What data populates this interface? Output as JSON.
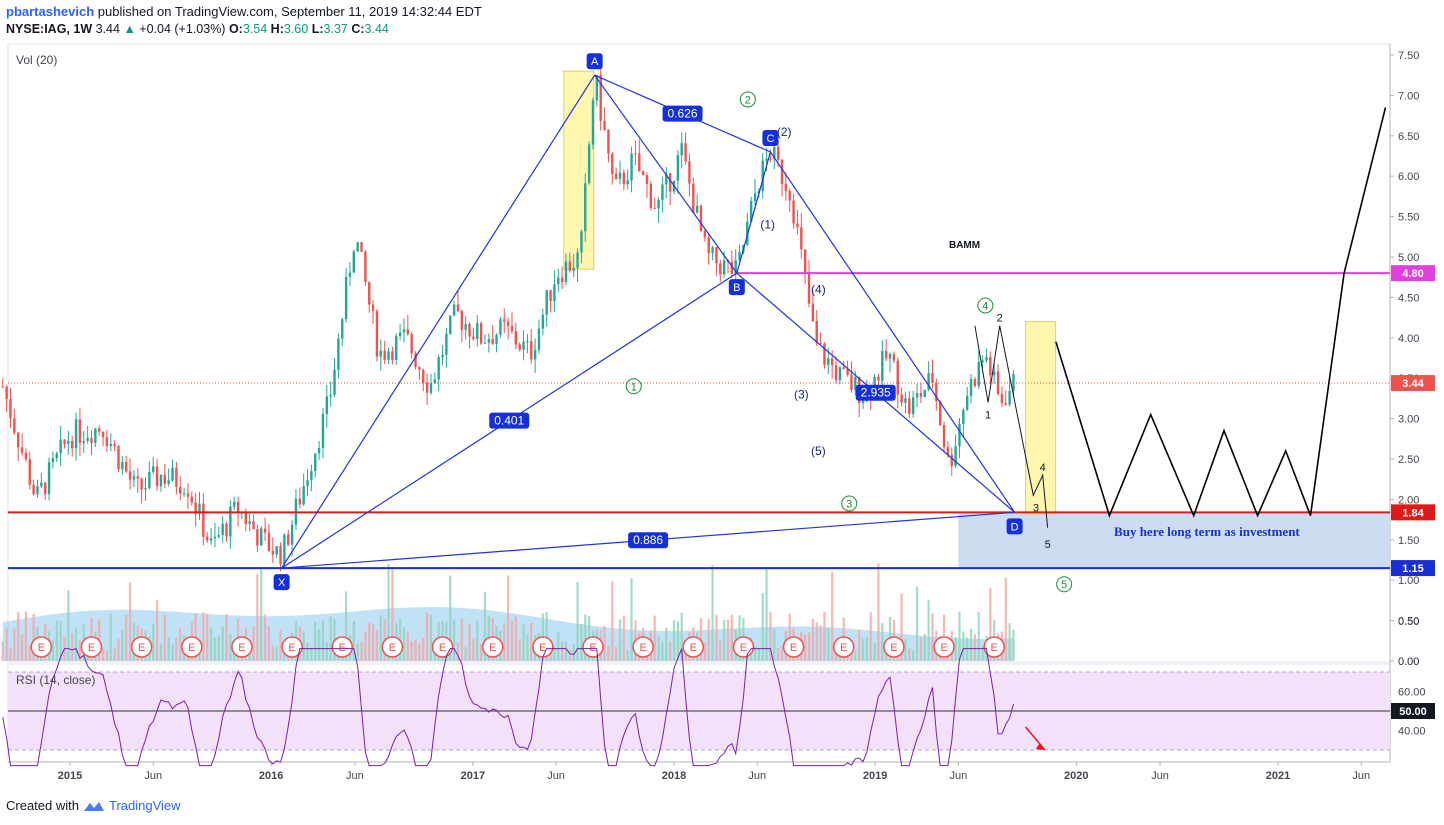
{
  "header": {
    "user": "pbartashevich",
    "published_text": "published on TradingView.com, September 11, 2019 14:32:44 EDT",
    "symbol": "NYSE:IAG, 1W",
    "last": "3.44",
    "change": "+0.04 (+1.03%)",
    "o_label": "O:",
    "o": "3.54",
    "h_label": "H:",
    "h": "3.60",
    "l_label": "L:",
    "l": "3.37",
    "c_label": "C:",
    "c": "3.44"
  },
  "footer": {
    "created_with": "Created with",
    "brand": "TradingView"
  },
  "colors": {
    "up": "#26a69a",
    "down": "#ef5350",
    "pattern": "#2233dd",
    "magenta": "#e040e0",
    "support_red": "#e01818",
    "support_blue": "#1a2fd1",
    "rsi_line": "#7b1fa2",
    "rsi_band": "#f3e1fb",
    "buy_zone": "#c6d9f1",
    "highlight": "#fff7b0"
  },
  "icons": [
    "up-triangle-icon",
    "earnings-e-icon",
    "tradingview-logo-icon",
    "red-arrow-down-icon"
  ],
  "chart_data": [
    {
      "type": "candlestick",
      "title": "NYSE:IAG, 1W",
      "y_ticks": [
        "7.50",
        "7.00",
        "6.50",
        "6.00",
        "5.50",
        "5.00",
        "4.50",
        "4.00",
        "3.50",
        "3.00",
        "2.50",
        "2.00",
        "1.50",
        "1.00",
        "0.50",
        "0.00"
      ],
      "x_ticks": [
        "2015",
        "Jun",
        "2016",
        "Jun",
        "2017",
        "Jun",
        "2018",
        "Jun",
        "2019",
        "Jun",
        "2020",
        "Jun",
        "2021",
        "Jun"
      ],
      "x_tick_dates": [
        "2015-01-01",
        "2015-06-01",
        "2016-01-01",
        "2016-06-01",
        "2017-01-01",
        "2017-06-01",
        "2018-01-01",
        "2018-06-01",
        "2019-01-01",
        "2019-06-01",
        "2020-01-01",
        "2020-06-01",
        "2021-01-01",
        "2021-06-01"
      ],
      "ylim": [
        0,
        7.6
      ],
      "price_path": {
        "dates": [
          "2014-09-01",
          "2014-11-01",
          "2015-01-01",
          "2015-03-01",
          "2015-05-01",
          "2015-06-15",
          "2015-08-01",
          "2015-09-15",
          "2015-11-01",
          "2015-12-15",
          "2016-01-20",
          "2016-03-01",
          "2016-04-15",
          "2016-06-01",
          "2016-07-15",
          "2016-09-01",
          "2016-10-15",
          "2016-12-01",
          "2017-01-15",
          "2017-03-01",
          "2017-04-15",
          "2017-06-01",
          "2017-07-15",
          "2017-08-10",
          "2017-09-15",
          "2017-10-20",
          "2017-12-01",
          "2018-01-15",
          "2018-03-01",
          "2018-04-25",
          "2018-06-01",
          "2018-06-25",
          "2018-08-01",
          "2018-09-15",
          "2018-11-01",
          "2018-12-15",
          "2019-01-25",
          "2019-03-01",
          "2019-04-15",
          "2019-05-15",
          "2019-06-15",
          "2019-07-20",
          "2019-08-15",
          "2019-09-11"
        ],
        "close": [
          3.4,
          2.0,
          2.8,
          2.9,
          2.1,
          2.3,
          2.2,
          1.4,
          1.9,
          1.5,
          1.3,
          2.2,
          3.2,
          5.3,
          3.8,
          4.0,
          3.4,
          4.3,
          4.0,
          4.1,
          3.8,
          4.8,
          5.0,
          7.25,
          5.8,
          6.2,
          5.6,
          6.3,
          5.0,
          4.8,
          5.9,
          6.3,
          5.8,
          3.9,
          3.5,
          3.3,
          3.8,
          3.1,
          3.5,
          2.4,
          3.3,
          3.8,
          3.2,
          3.44
        ]
      },
      "current_price": "3.44",
      "horizontal_levels": [
        {
          "value": "4.80",
          "color": "magenta"
        },
        {
          "value": "1.84",
          "color": "red"
        },
        {
          "value": "1.15",
          "color": "blue"
        }
      ],
      "xabcd": [
        {
          "label": "X",
          "date": "2016-01-20",
          "price": 1.15
        },
        {
          "label": "A",
          "date": "2017-08-10",
          "price": 7.25
        },
        {
          "label": "B",
          "date": "2018-04-25",
          "price": 4.8
        },
        {
          "label": "C",
          "date": "2018-06-25",
          "price": 6.3
        },
        {
          "label": "D",
          "date": "2019-09-11",
          "price": 1.84
        }
      ],
      "ratios": [
        "0.626",
        "0.401",
        "2.935",
        "0.886"
      ],
      "pattern_name": "BAMM",
      "wave_labels_circled": [
        "1",
        "2",
        "3",
        "4",
        "5"
      ],
      "wave_labels_paren": [
        "(1)",
        "(2)",
        "(3)",
        "(4)",
        "(5)"
      ],
      "subwave_labels": [
        "1",
        "2",
        "3",
        "4",
        "5"
      ],
      "projection": {
        "dates": [
          "2019-11-25",
          "2020-03-01",
          "2020-05-15",
          "2020-08-01",
          "2020-09-25",
          "2020-11-25",
          "2021-01-15",
          "2021-03-01",
          "2021-05-01",
          "2021-07-15"
        ],
        "price": [
          3.95,
          1.8,
          3.05,
          1.8,
          2.85,
          1.8,
          2.6,
          1.8,
          4.8,
          6.85
        ]
      },
      "buy_zone": {
        "from": "2019-06-01",
        "to": "2021-08-15",
        "top": 1.84,
        "bottom": 1.15
      },
      "annotation": "Buy here long term as investment"
    },
    {
      "type": "bar",
      "title": "Vol (20)",
      "y_ticks": [
        "0.50",
        "0.00"
      ],
      "earnings_marker": "E",
      "earnings_count": 20
    },
    {
      "type": "line",
      "title": "RSI (14, close)",
      "y_ticks": [
        "60.00",
        "40.00"
      ],
      "current_value": "50.00",
      "bands": [
        70,
        30
      ],
      "midline": 50
    }
  ]
}
